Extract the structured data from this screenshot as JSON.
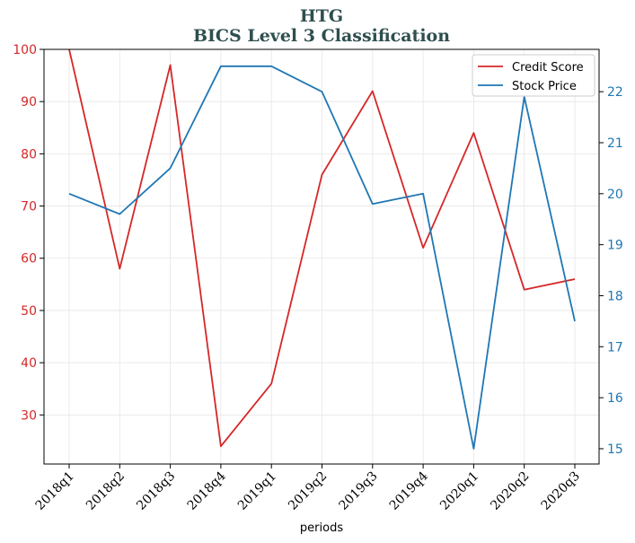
{
  "chart_data": {
    "type": "line",
    "title": "HTG",
    "subtitle": "BICS Level 3 Classification",
    "xlabel": "periods",
    "categories": [
      "2018q1",
      "2018q2",
      "2018q3",
      "2018q4",
      "2019q1",
      "2019q2",
      "2019q3",
      "2019q4",
      "2020q1",
      "2020q2",
      "2020q3"
    ],
    "grid": true,
    "legend_position": "top-right",
    "y_left": {
      "ylim": [
        20.6,
        100
      ],
      "ticks": [
        30,
        40,
        50,
        60,
        70,
        80,
        90,
        100
      ],
      "color": "#d62728"
    },
    "y_right": {
      "ylim": [
        14.7,
        22.83
      ],
      "ticks": [
        15,
        16,
        17,
        18,
        19,
        20,
        21,
        22
      ],
      "color": "#1f77b4"
    },
    "series": [
      {
        "name": "Credit Score",
        "axis": "left",
        "color": "#d62728",
        "values": [
          100,
          58,
          97,
          24,
          36,
          76,
          92,
          62,
          84,
          54,
          56
        ]
      },
      {
        "name": "Stock Price",
        "axis": "right",
        "color": "#1f77b4",
        "values": [
          20.0,
          19.6,
          20.5,
          22.5,
          22.5,
          22.0,
          19.8,
          20.0,
          15.0,
          21.9,
          17.5
        ]
      }
    ]
  }
}
